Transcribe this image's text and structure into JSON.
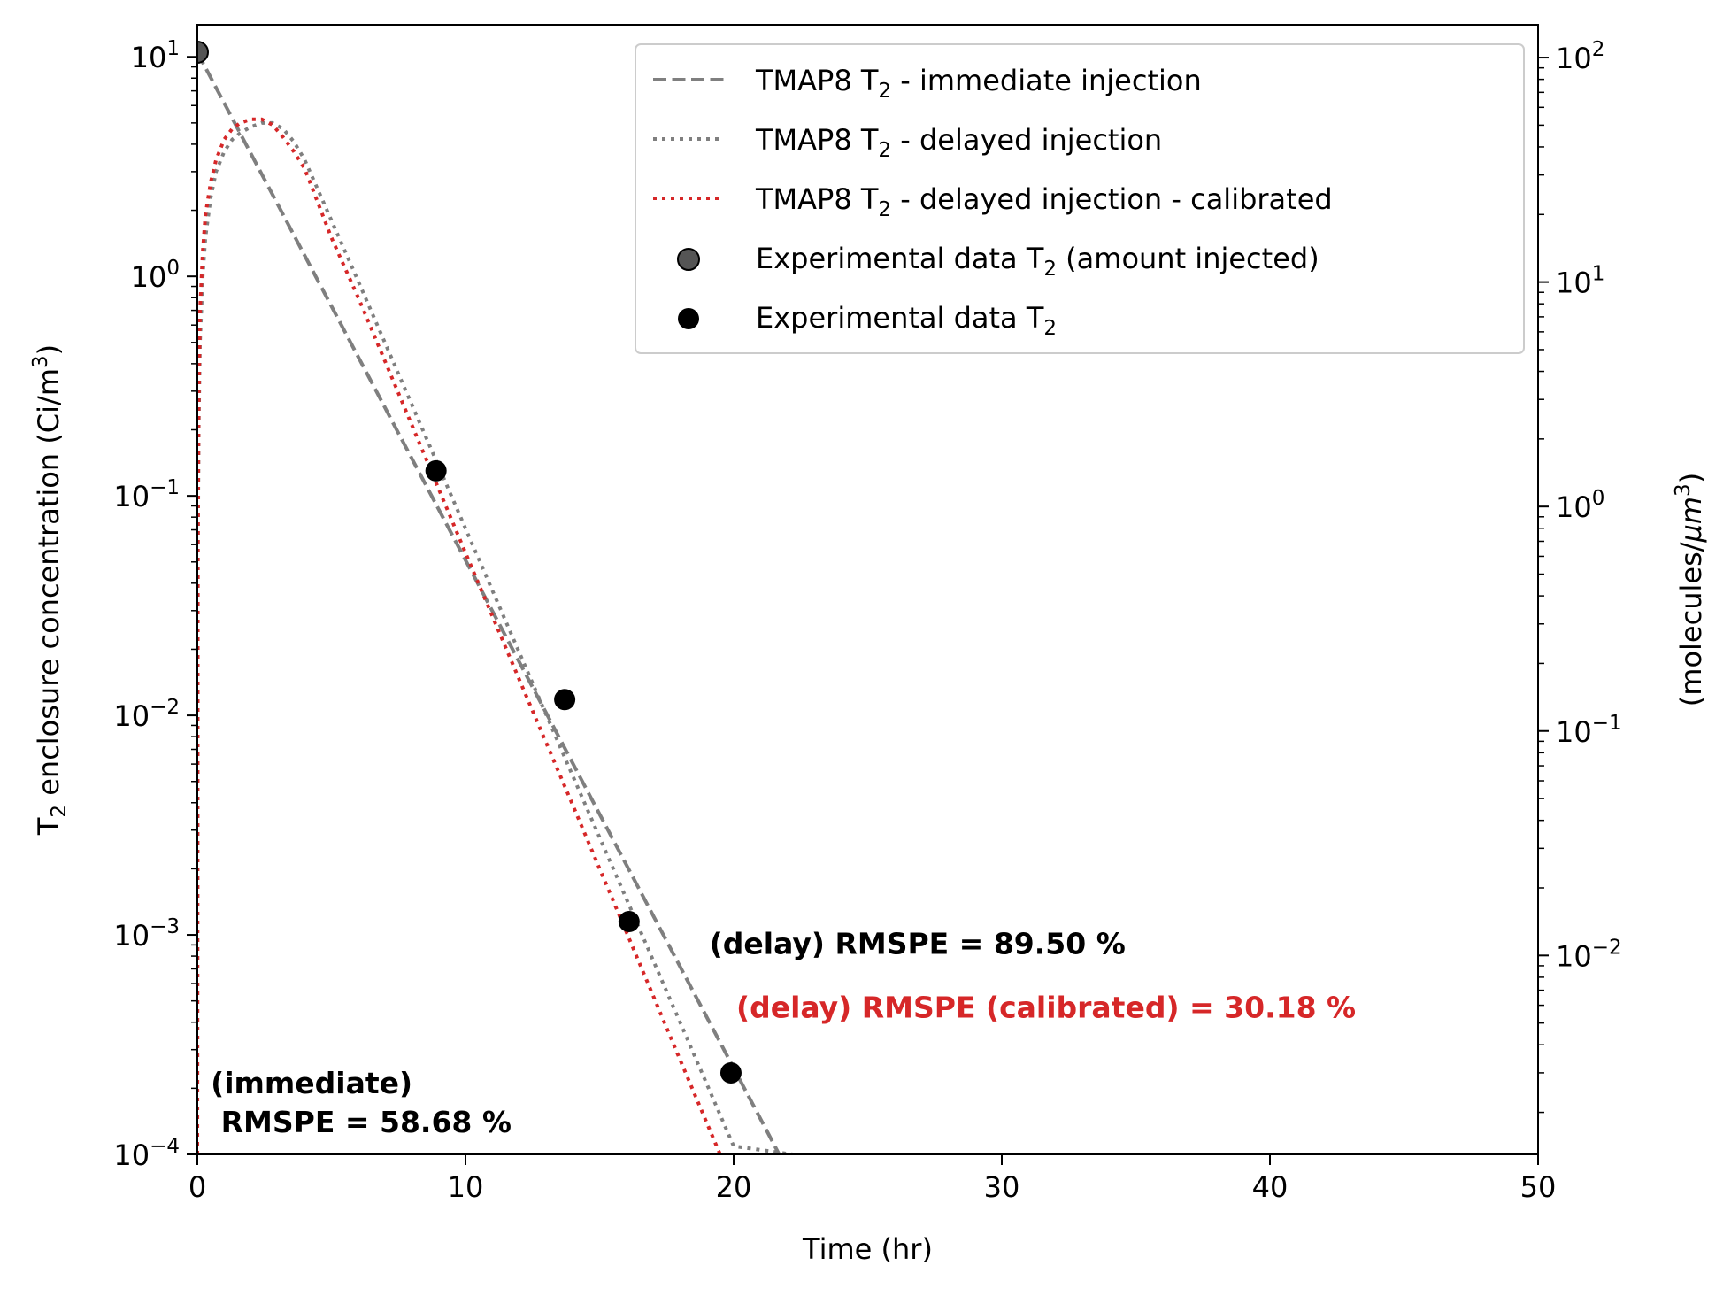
{
  "chart_data": {
    "type": "line",
    "xlabel": "Time (hr)",
    "ylabel": {
      "prefix": "T",
      "sub": "2",
      "middle": " enclosure concentration (Ci/m",
      "sup": "3",
      "suffix": ")"
    },
    "y2label": {
      "prefix": "(molecules/",
      "mu": "μ",
      "middle": "m",
      "sup": "3",
      "suffix": ")"
    },
    "xlim": [
      0,
      50
    ],
    "ylim": [
      0.0001,
      14
    ],
    "y2lim": [
      0.0013,
      140
    ],
    "yscale": "log",
    "y2scale": "log",
    "grid": false,
    "legend_position": "upper right",
    "x_ticks": [
      {
        "value": 0,
        "label": "0"
      },
      {
        "value": 10,
        "label": "10"
      },
      {
        "value": 20,
        "label": "20"
      },
      {
        "value": 30,
        "label": "30"
      },
      {
        "value": 40,
        "label": "40"
      },
      {
        "value": 50,
        "label": "50"
      }
    ],
    "y_ticks": [
      {
        "value": 10,
        "base": "10",
        "exp": "1"
      },
      {
        "value": 1,
        "base": "10",
        "exp": "0"
      },
      {
        "value": 0.1,
        "base": "10",
        "exp": "−1"
      },
      {
        "value": 0.01,
        "base": "10",
        "exp": "−2"
      },
      {
        "value": 0.001,
        "base": "10",
        "exp": "−3"
      },
      {
        "value": 0.0001,
        "base": "10",
        "exp": "−4"
      }
    ],
    "y2_ticks": [
      {
        "value": 100,
        "base": "10",
        "exp": "2"
      },
      {
        "value": 10,
        "base": "10",
        "exp": "1"
      },
      {
        "value": 1,
        "base": "10",
        "exp": "0"
      },
      {
        "value": 0.1,
        "base": "10",
        "exp": "−1"
      },
      {
        "value": 0.01,
        "base": "10",
        "exp": "−2"
      }
    ],
    "series": [
      {
        "name": {
          "prefix": "TMAP8 T",
          "sub": "2",
          "suffix": " - immediate injection"
        },
        "kind": "line",
        "style": "dashed",
        "color": "#7f7f7f",
        "x": [
          0,
          21.7
        ],
        "y": [
          10.5,
          0.0001
        ]
      },
      {
        "name": {
          "prefix": "TMAP8 T",
          "sub": "2",
          "suffix": " - delayed injection"
        },
        "kind": "line",
        "style": "dotted",
        "color": "#7f7f7f",
        "x": [
          0,
          0.02,
          0.05,
          0.1,
          0.2,
          0.3,
          0.5,
          0.7,
          1.0,
          1.3,
          1.6,
          2.0,
          2.4,
          2.8,
          3.2,
          3.6,
          4.0,
          5.0,
          6.0,
          8.0,
          10.0,
          12.0,
          14.0,
          16.0,
          18.0,
          20.0,
          22.2
        ],
        "y": [
          0.0001,
          0.05,
          0.2,
          0.5,
          1.0,
          1.5,
          2.3,
          3.0,
          3.7,
          4.2,
          4.5,
          4.8,
          5.0,
          5.0,
          4.7,
          4.1,
          3.4,
          1.8,
          0.95,
          0.26,
          0.071,
          0.0194,
          0.0053,
          0.00146,
          0.0004,
          0.000109,
          0.0001
        ]
      },
      {
        "name": {
          "prefix": "TMAP8 T",
          "sub": "2",
          "suffix": " - delayed injection - calibrated"
        },
        "kind": "line",
        "style": "dotted",
        "color": "#d62728",
        "x": [
          0,
          0.02,
          0.05,
          0.1,
          0.2,
          0.3,
          0.5,
          0.7,
          1.0,
          1.3,
          1.6,
          2.0,
          2.4,
          2.8,
          3.2,
          3.6,
          4.0,
          5.0,
          6.0,
          8.0,
          10.0,
          12.0,
          14.0,
          16.0,
          18.0,
          20.0,
          21.7
        ],
        "y": [
          0.0001,
          0.06,
          0.25,
          0.7,
          1.3,
          1.9,
          2.7,
          3.4,
          4.2,
          4.7,
          5.0,
          5.2,
          5.2,
          4.9,
          4.3,
          3.7,
          3.1,
          1.5,
          0.8,
          0.21,
          0.055,
          0.0146,
          0.0039,
          0.00103,
          0.00027,
          7.15e-05,
          0.0001
        ]
      },
      {
        "name": {
          "prefix": "Experimental data T",
          "sub": "2",
          "suffix": " (amount injected)"
        },
        "kind": "scatter",
        "color": "#555555",
        "x": [
          0
        ],
        "y": [
          10.5
        ]
      },
      {
        "name": {
          "prefix": "Experimental data T",
          "sub": "2",
          "suffix": ""
        },
        "kind": "scatter",
        "color": "#000000",
        "x": [
          8.9,
          13.7,
          16.1,
          19.9
        ],
        "y": [
          0.13,
          0.0118,
          0.00115,
          0.000235
        ]
      }
    ],
    "annotations": [
      {
        "lines": [
          "(delay) RMSPE = 89.50 %"
        ],
        "color": "#000000",
        "x": 19.1,
        "y": 0.00082,
        "align": "start"
      },
      {
        "lines": [
          "(delay) RMSPE (calibrated) = 30.18 %"
        ],
        "color": "#d62728",
        "x": 20.1,
        "y": 0.00042,
        "align": "start"
      },
      {
        "lines": [
          "(immediate)",
          " RMSPE = 58.68 %"
        ],
        "color": "#000000",
        "x": 0.5,
        "y": 0.00019,
        "align": "start"
      }
    ]
  }
}
